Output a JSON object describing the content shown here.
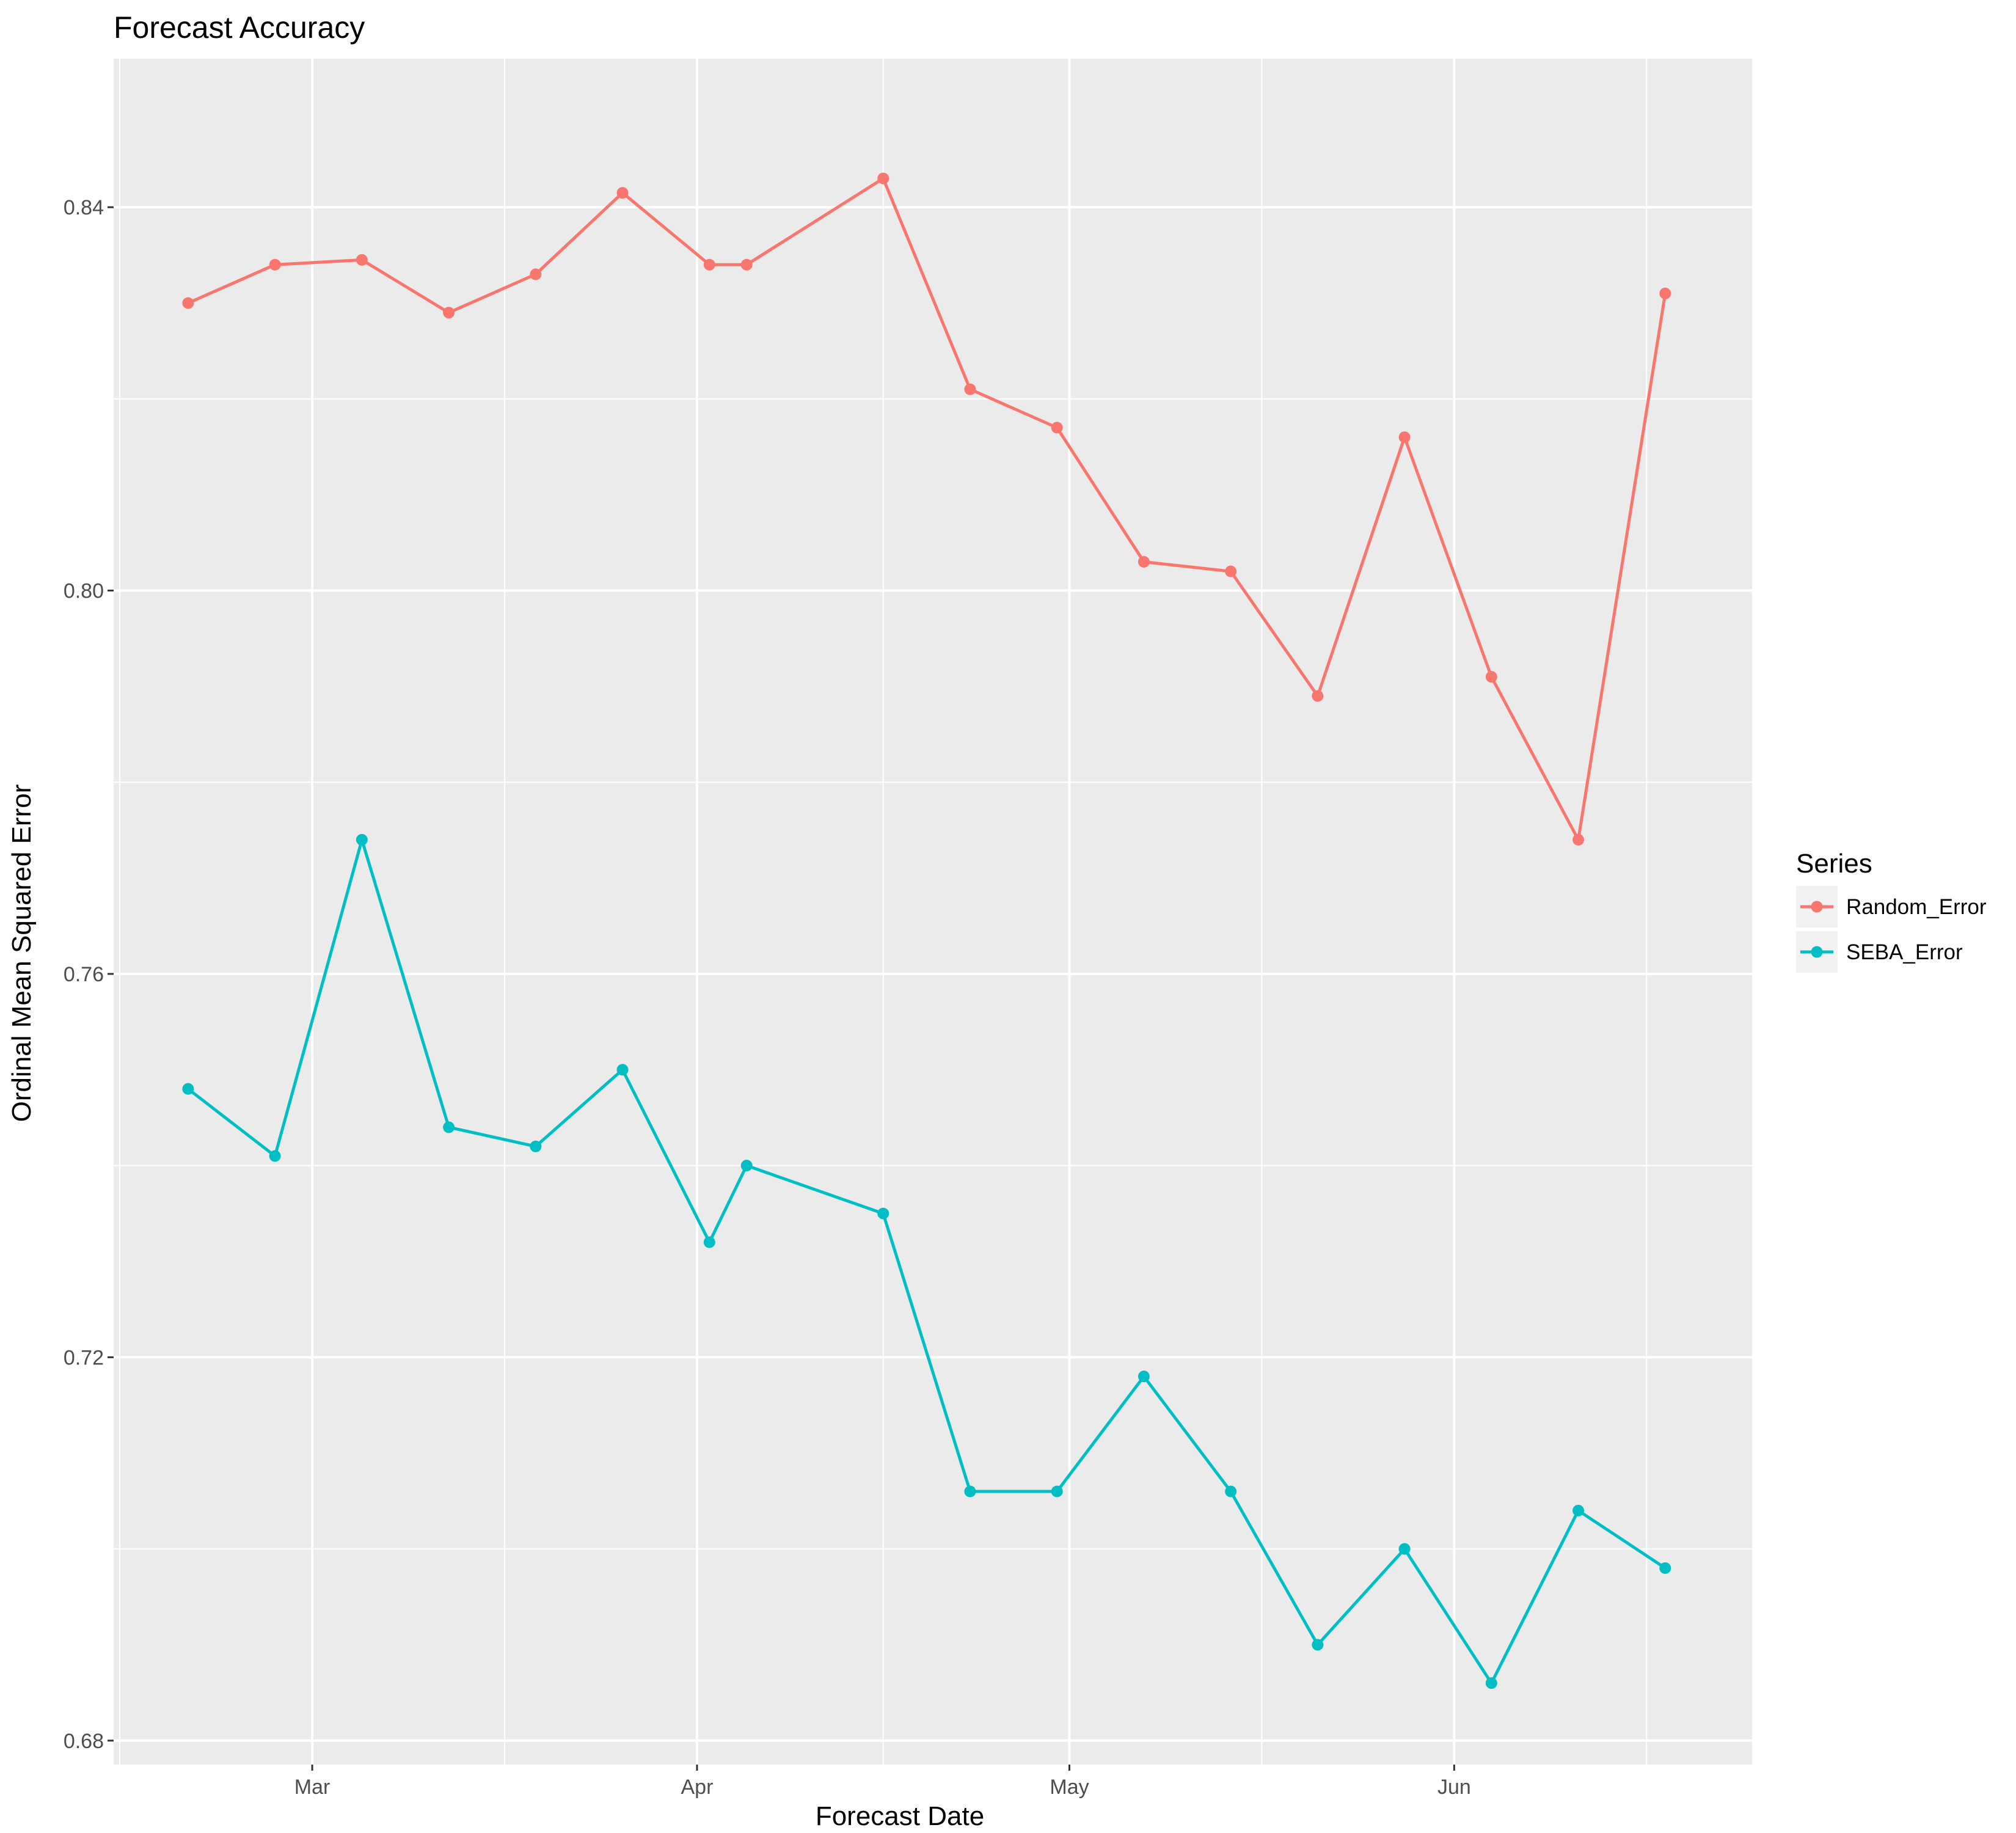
{
  "chart_data": {
    "type": "line",
    "title": "Forecast Accuracy",
    "xlabel": "Forecast Date",
    "ylabel": "Ordinal Mean Squared Error",
    "x_type": "date",
    "xlim": [
      "2017-02-13",
      "2017-06-25"
    ],
    "ylim": [
      0.6775,
      0.8555
    ],
    "y_ticks": [
      0.68,
      0.72,
      0.76,
      0.8,
      0.84
    ],
    "y_tick_labels": [
      "0.68",
      "0.72",
      "0.76",
      "0.80",
      "0.84"
    ],
    "x_ticks": [
      "2017-03-01",
      "2017-04-01",
      "2017-05-01",
      "2017-06-01"
    ],
    "x_tick_labels": [
      "Mar",
      "Apr",
      "May",
      "Jun"
    ],
    "x": [
      "2017-02-19",
      "2017-02-26",
      "2017-03-05",
      "2017-03-12",
      "2017-03-19",
      "2017-03-26",
      "2017-04-02",
      "2017-04-05",
      "2017-04-16",
      "2017-04-23",
      "2017-04-30",
      "2017-05-07",
      "2017-05-14",
      "2017-05-21",
      "2017-05-28",
      "2017-06-04",
      "2017-06-11",
      "2017-06-18"
    ],
    "series": [
      {
        "name": "Random_Error",
        "color": "#F8766D",
        "values": [
          0.83,
          0.834,
          0.8345,
          0.829,
          0.833,
          0.8415,
          0.834,
          0.834,
          0.843,
          0.821,
          0.817,
          0.803,
          0.802,
          0.789,
          0.816,
          0.791,
          0.774,
          0.831
        ]
      },
      {
        "name": "SEBA_Error",
        "color": "#00BFC4",
        "values": [
          0.748,
          0.741,
          0.774,
          0.744,
          0.742,
          0.75,
          0.732,
          0.74,
          0.735,
          0.706,
          0.706,
          0.718,
          0.706,
          0.69,
          0.7,
          0.686,
          0.704,
          0.698
        ]
      }
    ],
    "grid": true,
    "legend": {
      "title": "Series",
      "position": "right"
    }
  }
}
